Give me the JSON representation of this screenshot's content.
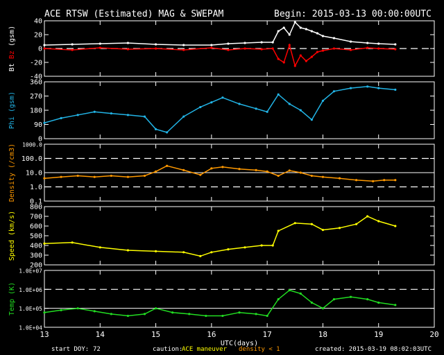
{
  "header": {
    "title": "ACE RTSW (Estimated) MAG & SWEPAM",
    "begin": "Begin: 2015-03-13 00:00:00UTC"
  },
  "footer": {
    "start_label": "start DOY:",
    "start_doy": "72",
    "caution_label": "caution:",
    "caution_maneuver": "ACE maneuver",
    "caution_density": "density < 1",
    "created": "created: 2015-03-19 08:02:03UTC"
  },
  "colors": {
    "bt": "#ffffff",
    "bz": "#ff0000",
    "phi": "#22b4e6",
    "density": "#ff9900",
    "speed": "#ffff00",
    "temp": "#22dd22",
    "axis": "#ffffff",
    "maneuver": "#ffff00",
    "background": "#000000"
  },
  "chart_data": [
    {
      "type": "line",
      "panel": "mag",
      "ylabel_parts": [
        "Bt",
        "Bz",
        "(gsm)"
      ],
      "yticks": [
        "40",
        "20",
        "0",
        "-20",
        "-40"
      ],
      "ylim": [
        -40,
        40
      ],
      "xlim": [
        13,
        20
      ],
      "dashed_lines": [
        0
      ],
      "series": [
        {
          "name": "Bt",
          "color": "#ffffff",
          "x": [
            13.0,
            13.5,
            14.0,
            14.5,
            15.0,
            15.5,
            16.0,
            16.3,
            16.6,
            16.9,
            17.1,
            17.2,
            17.3,
            17.4,
            17.5,
            17.6,
            17.7,
            17.8,
            17.9,
            18.0,
            18.2,
            18.5,
            18.8,
            19.0,
            19.3
          ],
          "y": [
            5,
            6,
            7,
            8,
            6,
            5,
            5,
            7,
            8,
            9,
            9,
            25,
            30,
            20,
            38,
            30,
            28,
            25,
            22,
            18,
            15,
            10,
            8,
            7,
            6
          ]
        },
        {
          "name": "Bz",
          "color": "#ff0000",
          "x": [
            13.0,
            13.5,
            14.0,
            14.5,
            15.0,
            15.5,
            16.0,
            16.3,
            16.6,
            16.9,
            17.1,
            17.2,
            17.3,
            17.4,
            17.5,
            17.6,
            17.7,
            17.8,
            17.9,
            18.0,
            18.2,
            18.5,
            18.8,
            19.0,
            19.3
          ],
          "y": [
            0,
            -2,
            1,
            -1,
            0,
            -2,
            1,
            -2,
            0,
            -1,
            0,
            -15,
            -20,
            5,
            -25,
            -10,
            -18,
            -12,
            -5,
            -3,
            0,
            -2,
            1,
            0,
            -1
          ]
        }
      ]
    },
    {
      "type": "scatter",
      "panel": "phi",
      "ylabel": "Phi (gsm)",
      "yticks": [
        "360",
        "270",
        "180",
        "90",
        "0"
      ],
      "ylim": [
        0,
        360
      ],
      "xlim": [
        13,
        20
      ],
      "series": [
        {
          "name": "Phi",
          "color": "#22b4e6",
          "x": [
            13.0,
            13.3,
            13.6,
            13.9,
            14.2,
            14.5,
            14.8,
            15.0,
            15.2,
            15.5,
            15.8,
            16.0,
            16.2,
            16.5,
            16.8,
            17.0,
            17.2,
            17.4,
            17.6,
            17.8,
            18.0,
            18.2,
            18.5,
            18.8,
            19.0,
            19.3
          ],
          "y": [
            100,
            130,
            150,
            170,
            160,
            150,
            140,
            60,
            40,
            140,
            200,
            230,
            260,
            220,
            190,
            170,
            280,
            220,
            180,
            120,
            240,
            300,
            320,
            330,
            320,
            310
          ]
        }
      ]
    },
    {
      "type": "line",
      "panel": "density",
      "ylabel": "Density (/cm3)",
      "yticks": [
        "1000.0",
        "100.0",
        "10.0",
        "1.0",
        "0.1"
      ],
      "scale": "log",
      "ylim": [
        0.1,
        1000
      ],
      "xlim": [
        13,
        20
      ],
      "dashed_lines": [
        100,
        1
      ],
      "solid_lines": [
        10
      ],
      "series": [
        {
          "name": "Density",
          "color": "#ff9900",
          "x": [
            13.0,
            13.3,
            13.6,
            13.9,
            14.2,
            14.5,
            14.8,
            15.0,
            15.2,
            15.5,
            15.8,
            16.0,
            16.2,
            16.5,
            16.8,
            17.0,
            17.2,
            17.4,
            17.6,
            17.8,
            18.0,
            18.3,
            18.6,
            18.9,
            19.1,
            19.3
          ],
          "y": [
            4,
            5,
            6,
            5,
            6,
            5,
            6,
            12,
            30,
            15,
            7,
            20,
            25,
            18,
            15,
            12,
            6,
            14,
            10,
            6,
            5,
            4,
            3,
            2.5,
            3,
            3
          ]
        }
      ]
    },
    {
      "type": "line",
      "panel": "speed",
      "ylabel": "Speed (km/s)",
      "yticks": [
        "800",
        "700",
        "600",
        "500",
        "400",
        "300",
        "200"
      ],
      "ylim": [
        200,
        800
      ],
      "xlim": [
        13,
        20
      ],
      "series": [
        {
          "name": "Speed",
          "color": "#ffff00",
          "x": [
            13.0,
            13.5,
            14.0,
            14.5,
            15.0,
            15.5,
            15.8,
            16.0,
            16.3,
            16.6,
            16.9,
            17.1,
            17.2,
            17.5,
            17.8,
            18.0,
            18.3,
            18.6,
            18.8,
            19.0,
            19.3
          ],
          "y": [
            420,
            430,
            380,
            350,
            340,
            330,
            290,
            330,
            360,
            380,
            400,
            400,
            550,
            630,
            620,
            560,
            580,
            620,
            700,
            650,
            600
          ]
        }
      ]
    },
    {
      "type": "line",
      "panel": "temp",
      "ylabel": "Temp (K)",
      "yticks": [
        "1.0E+07",
        "1.0E+06",
        "1.0E+05",
        "1.0E+04"
      ],
      "scale": "log",
      "ylim": [
        10000,
        10000000
      ],
      "xlim": [
        13,
        20
      ],
      "dashed_lines": [
        1000000
      ],
      "solid_lines": [
        100000
      ],
      "xlabel": "UTC(days)",
      "xticks": [
        "13",
        "14",
        "15",
        "16",
        "17",
        "18",
        "19",
        "20"
      ],
      "series": [
        {
          "name": "Temp",
          "color": "#22dd22",
          "x": [
            13.0,
            13.3,
            13.6,
            13.9,
            14.2,
            14.5,
            14.8,
            15.0,
            15.3,
            15.6,
            15.9,
            16.2,
            16.5,
            16.8,
            17.0,
            17.2,
            17.4,
            17.6,
            17.8,
            18.0,
            18.2,
            18.5,
            18.8,
            19.0,
            19.3
          ],
          "y": [
            60000,
            80000,
            100000,
            70000,
            50000,
            40000,
            50000,
            100000,
            60000,
            50000,
            40000,
            40000,
            60000,
            50000,
            40000,
            300000,
            900000,
            600000,
            200000,
            100000,
            300000,
            400000,
            300000,
            200000,
            150000
          ]
        }
      ]
    }
  ]
}
